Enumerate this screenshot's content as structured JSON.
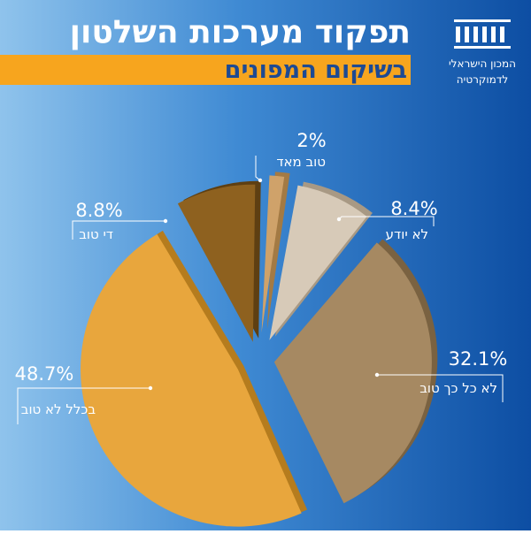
{
  "header": {
    "title": "תפקוד מערכות השלטון",
    "subtitle": "בשיקום המפונים",
    "accent_color": "#f7a51e"
  },
  "logo": {
    "icon": "institute-columns-icon",
    "line1": "המכון הישראלי",
    "line2": "לדמוקרטיה"
  },
  "chart_data": {
    "type": "pie",
    "unit": "%",
    "slices": [
      {
        "label": "טוב מאד",
        "value": 2.0,
        "display": "2%",
        "color": "#cfa26a",
        "side": "#a37a44"
      },
      {
        "label": "לא יודע",
        "value": 8.4,
        "display": "8.4%",
        "color": "#d7cab8",
        "side": "#a89984"
      },
      {
        "label": "לא כל כך טוב",
        "value": 32.1,
        "display": "32.1%",
        "color": "#a68962",
        "side": "#7a6241"
      },
      {
        "label": "בכלל לא טוב",
        "value": 48.7,
        "display": "48.7%",
        "color": "#e8a63d",
        "side": "#b57c1e"
      },
      {
        "label": "די טוב",
        "value": 8.8,
        "display": "8.8%",
        "color": "#8e611f",
        "side": "#5e3f12"
      }
    ]
  }
}
